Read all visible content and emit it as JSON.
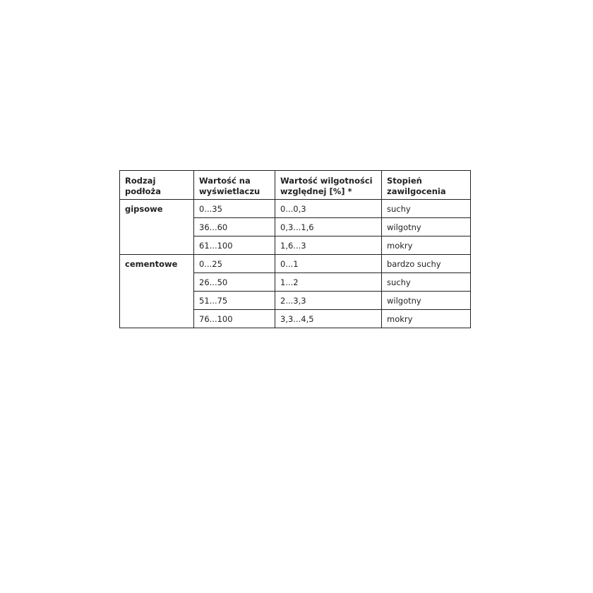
{
  "table": {
    "headers": [
      [
        "Rodzaj",
        "podłoża"
      ],
      [
        "Wartość na",
        "wyświetlaczu"
      ],
      [
        "Wartość wilgotności",
        "względnej [%] *"
      ],
      [
        "Stopień",
        "zawilgocenia"
      ]
    ],
    "groups": [
      {
        "name": "gipsowe",
        "rows": [
          [
            "0...35",
            "0...0,3",
            "suchy"
          ],
          [
            "36...60",
            "0,3...1,6",
            "wilgotny"
          ],
          [
            "61...100",
            "1,6...3",
            "mokry"
          ]
        ]
      },
      {
        "name": "cementowe",
        "rows": [
          [
            "0...25",
            "0...1",
            "bardzo suchy"
          ],
          [
            "26...50",
            "1...2",
            "suchy"
          ],
          [
            "51...75",
            "2...3,3",
            "wilgotny"
          ],
          [
            "76...100",
            "3,3...4,5",
            "mokry"
          ]
        ]
      }
    ]
  }
}
